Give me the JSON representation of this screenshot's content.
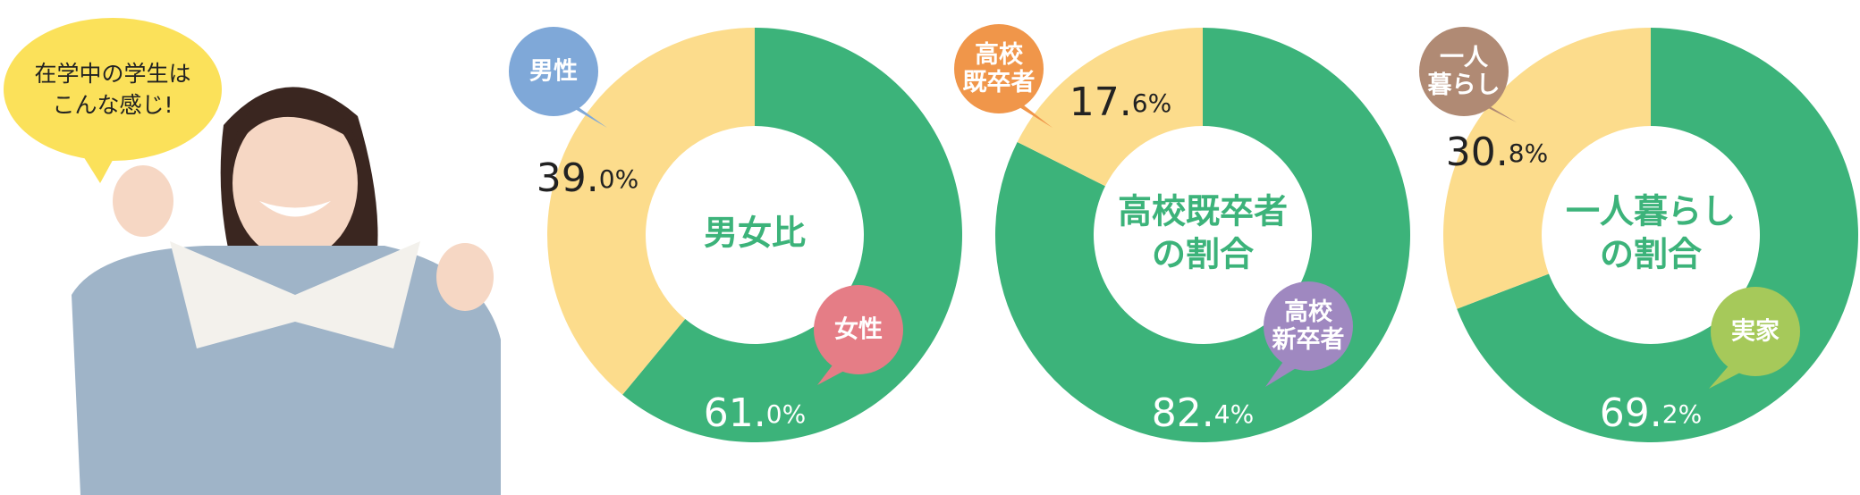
{
  "speech_bubble": "在学中の学生は\nこんな感じ!",
  "chart_data": [
    {
      "type": "donut",
      "title": [
        "男女比"
      ],
      "categories": [
        "女性",
        "男性"
      ],
      "values": [
        61.0,
        39.0
      ],
      "value_labels": [
        "61.0%",
        "39.0%"
      ],
      "colors": [
        "#3cb37a",
        "#fcdc8c"
      ],
      "category_colors": [
        "#e57d86",
        "#7fa8d8"
      ]
    },
    {
      "type": "donut",
      "title": [
        "高校既卒者",
        "の割合"
      ],
      "categories": [
        "高校\n新卒者",
        "高校\n既卒者"
      ],
      "values": [
        82.4,
        17.6
      ],
      "value_labels": [
        "82.4%",
        "17.6%"
      ],
      "colors": [
        "#3cb37a",
        "#fcdc8c"
      ],
      "category_colors": [
        "#9f88c0",
        "#f0964a"
      ]
    },
    {
      "type": "donut",
      "title": [
        "一人暮らし",
        "の割合"
      ],
      "categories": [
        "実家",
        "一人\n暮らし"
      ],
      "values": [
        69.2,
        30.8
      ],
      "value_labels": [
        "69.2%",
        "30.8%"
      ],
      "colors": [
        "#3cb37a",
        "#fcdc8c"
      ],
      "category_colors": [
        "#a6c95a",
        "#b08a74"
      ]
    }
  ]
}
